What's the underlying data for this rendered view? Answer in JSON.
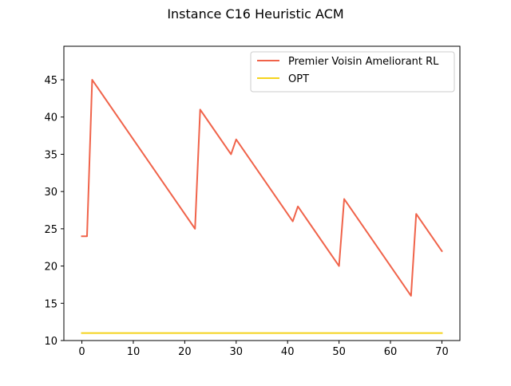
{
  "chart_data": {
    "type": "line",
    "title": "Instance C16 Heuristic ACM",
    "xlabel": "",
    "ylabel": "",
    "xlim": [
      -3.5,
      73.5
    ],
    "ylim": [
      10,
      49.5
    ],
    "xticks": [
      0,
      10,
      20,
      30,
      40,
      50,
      60,
      70
    ],
    "yticks": [
      10,
      15,
      20,
      25,
      30,
      35,
      40,
      45
    ],
    "grid": false,
    "legend_position": "top-right",
    "series": [
      {
        "name": "Premier Voisin Ameliorant RL",
        "color": "#f0634a",
        "x": [
          0,
          1,
          2,
          22,
          23,
          29,
          30,
          41,
          42,
          50,
          51,
          64,
          65,
          70
        ],
        "y": [
          24,
          24,
          45,
          25,
          41,
          35,
          37,
          26,
          28,
          20,
          29,
          16,
          27,
          22
        ]
      },
      {
        "name": "OPT",
        "color": "#f5d31c",
        "x": [
          0,
          70
        ],
        "y": [
          11,
          11
        ]
      }
    ]
  }
}
